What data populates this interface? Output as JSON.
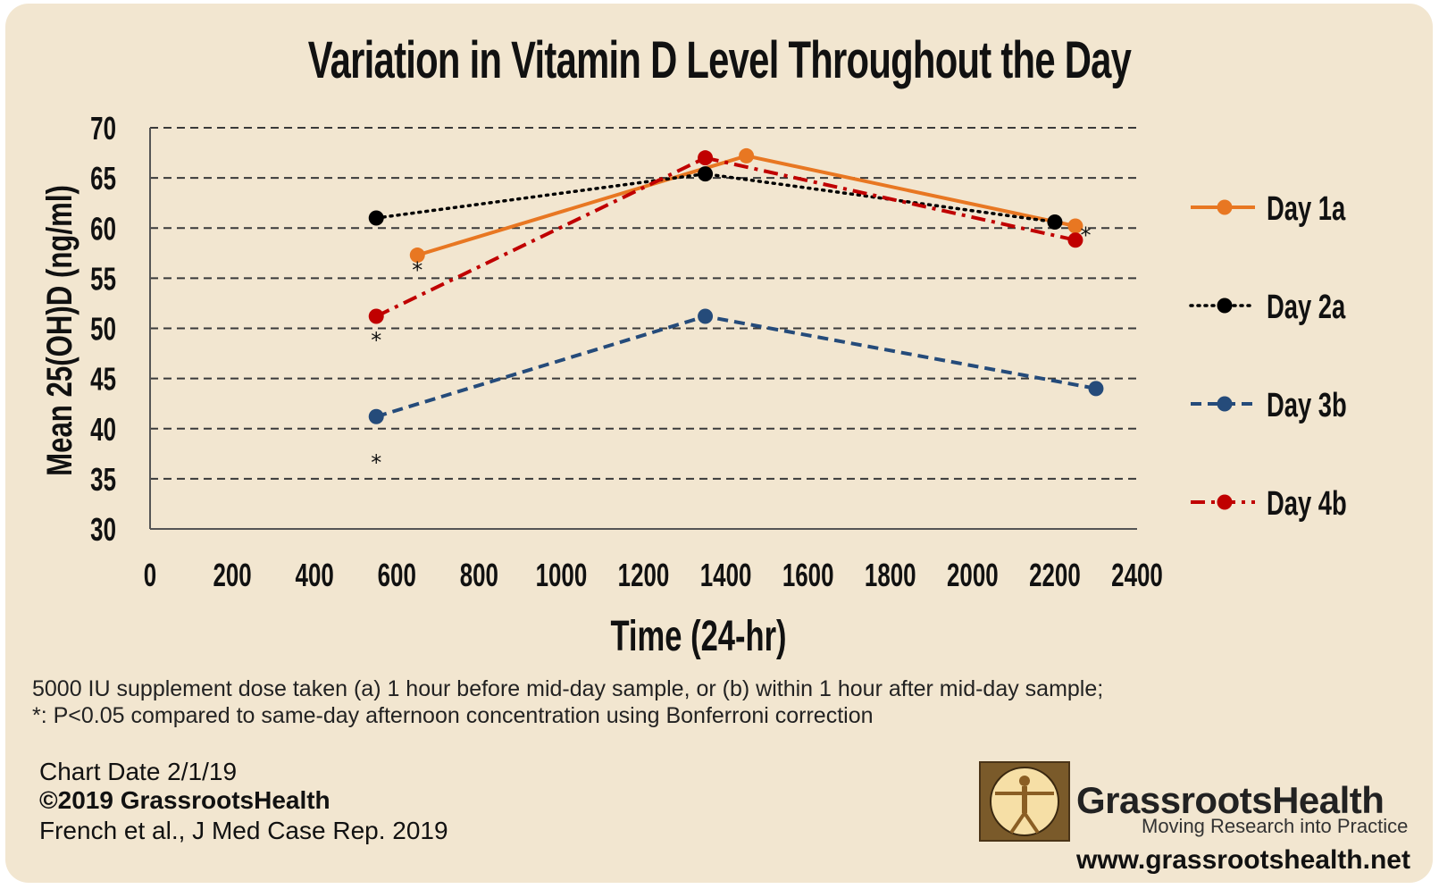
{
  "chart_data": {
    "type": "line",
    "title": "Variation in Vitamin D Level Throughout the Day",
    "xlabel": "Time (24-hr)",
    "ylabel": "Mean 25(OH)D (ng/ml)",
    "xlim": [
      0,
      2400
    ],
    "ylim": [
      30,
      70
    ],
    "x_ticks": [
      "0",
      "200",
      "400",
      "600",
      "800",
      "1000",
      "1200",
      "1400",
      "1600",
      "1800",
      "2000",
      "2200",
      "2400"
    ],
    "y_ticks": [
      "30",
      "35",
      "40",
      "45",
      "50",
      "55",
      "60",
      "65",
      "70"
    ],
    "grid": "horizontal dashed",
    "legend_position": "right",
    "series": [
      {
        "name": "Day 1a",
        "color": "#e87722",
        "style": "solid",
        "points": [
          {
            "x": 650,
            "y": 57.3
          },
          {
            "x": 1450,
            "y": 67.2
          },
          {
            "x": 2250,
            "y": 60.2
          }
        ]
      },
      {
        "name": "Day 2a",
        "color": "#000000",
        "style": "dotted",
        "points": [
          {
            "x": 550,
            "y": 61.0
          },
          {
            "x": 1350,
            "y": 65.4
          },
          {
            "x": 2200,
            "y": 60.6
          }
        ]
      },
      {
        "name": "Day 3b",
        "color": "#254b7a",
        "style": "dashed",
        "points": [
          {
            "x": 550,
            "y": 41.2
          },
          {
            "x": 1350,
            "y": 51.2
          },
          {
            "x": 2300,
            "y": 44.0
          }
        ]
      },
      {
        "name": "Day 4b",
        "color": "#c00000",
        "style": "dashdot",
        "points": [
          {
            "x": 550,
            "y": 51.2
          },
          {
            "x": 1350,
            "y": 67.0
          },
          {
            "x": 2250,
            "y": 58.8
          }
        ]
      }
    ],
    "annotations": [
      {
        "text": "*",
        "x": 650,
        "y": 56.5
      },
      {
        "text": "*",
        "x": 550,
        "y": 49.5
      },
      {
        "text": "*",
        "x": 550,
        "y": 37.3
      },
      {
        "text": "*",
        "x": 2275,
        "y": 60.0
      }
    ]
  },
  "notes": {
    "line1": "5000 IU supplement dose taken (a) 1 hour before mid-day sample, or (b) within 1 hour after mid-day sample;",
    "line2": "*: P<0.05 compared to same-day afternoon concentration using Bonferroni correction"
  },
  "footer": {
    "chart_date": "Chart Date 2/1/19",
    "copyright": "©2019 GrassrootsHealth",
    "citation": "French et al., J Med Case Rep. 2019"
  },
  "logo": {
    "name": "GrassrootsHealth",
    "tagline": "Moving Research into Practice",
    "url": "www.grassrootshealth.net"
  },
  "colors": {
    "background": "#f2e6d0"
  }
}
